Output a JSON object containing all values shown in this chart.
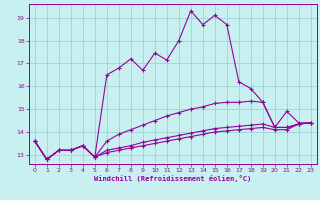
{
  "xlabel": "Windchill (Refroidissement éolien,°C)",
  "bg_color": "#c8f0f0",
  "grid_color": "#a0d8d8",
  "line_color": "#990099",
  "xlim": [
    -0.5,
    23.5
  ],
  "ylim": [
    12.6,
    19.6
  ],
  "xticks": [
    0,
    1,
    2,
    3,
    4,
    5,
    6,
    7,
    8,
    9,
    10,
    11,
    12,
    13,
    14,
    15,
    16,
    17,
    18,
    19,
    20,
    21,
    22,
    23
  ],
  "yticks": [
    13,
    14,
    15,
    16,
    17,
    18,
    19
  ],
  "curve1": [
    13.6,
    12.8,
    13.2,
    13.2,
    13.4,
    12.9,
    16.5,
    16.8,
    17.2,
    16.7,
    17.45,
    17.15,
    18.0,
    19.3,
    18.7,
    19.1,
    18.7,
    16.2,
    15.9,
    15.3,
    14.2,
    14.9,
    14.4,
    14.4
  ],
  "curve2": [
    13.6,
    12.8,
    13.2,
    13.2,
    13.4,
    12.9,
    13.6,
    13.9,
    14.1,
    14.3,
    14.5,
    14.7,
    14.85,
    15.0,
    15.1,
    15.25,
    15.3,
    15.3,
    15.35,
    15.3,
    14.2,
    14.2,
    14.35,
    14.4
  ],
  "curve3": [
    13.6,
    12.8,
    13.2,
    13.2,
    13.4,
    12.9,
    13.2,
    13.3,
    13.4,
    13.55,
    13.65,
    13.75,
    13.85,
    13.95,
    14.05,
    14.15,
    14.2,
    14.25,
    14.3,
    14.35,
    14.2,
    14.2,
    14.35,
    14.4
  ],
  "curve4": [
    13.6,
    12.8,
    13.2,
    13.2,
    13.4,
    12.9,
    13.1,
    13.2,
    13.3,
    13.4,
    13.5,
    13.6,
    13.7,
    13.8,
    13.9,
    14.0,
    14.05,
    14.1,
    14.15,
    14.2,
    14.1,
    14.1,
    14.35,
    14.4
  ]
}
